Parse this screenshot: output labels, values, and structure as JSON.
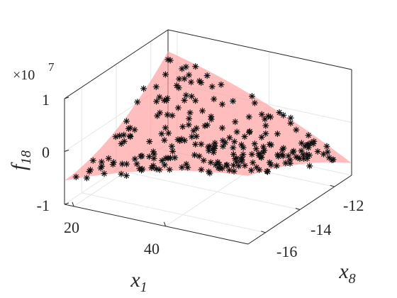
{
  "chart_data": {
    "type": "surface-scatter-3d",
    "zlabel": "f",
    "zlabel_sub": "18",
    "xlabel": "x",
    "xlabel_sub": "1",
    "ylabel": "x",
    "ylabel_sub": "8",
    "z_exponent_label": "×10",
    "z_exponent_power": "7",
    "x_ticks": [
      "20",
      "40"
    ],
    "y_ticks": [
      "-12",
      "-14",
      "-16"
    ],
    "z_ticks": [
      "1",
      "0",
      "-1"
    ],
    "x_tick_values": [
      20,
      40
    ],
    "y_tick_values": [
      -12,
      -14,
      -16
    ],
    "z_tick_values": [
      1,
      0,
      -1
    ],
    "xlim": [
      18,
      58
    ],
    "ylim": [
      -17,
      -11
    ],
    "zlim": [
      -1,
      1
    ],
    "grid": true,
    "surface_color": "#ff9999",
    "marker": "asterisk",
    "marker_color": "#000000",
    "box_color": "#262626"
  }
}
